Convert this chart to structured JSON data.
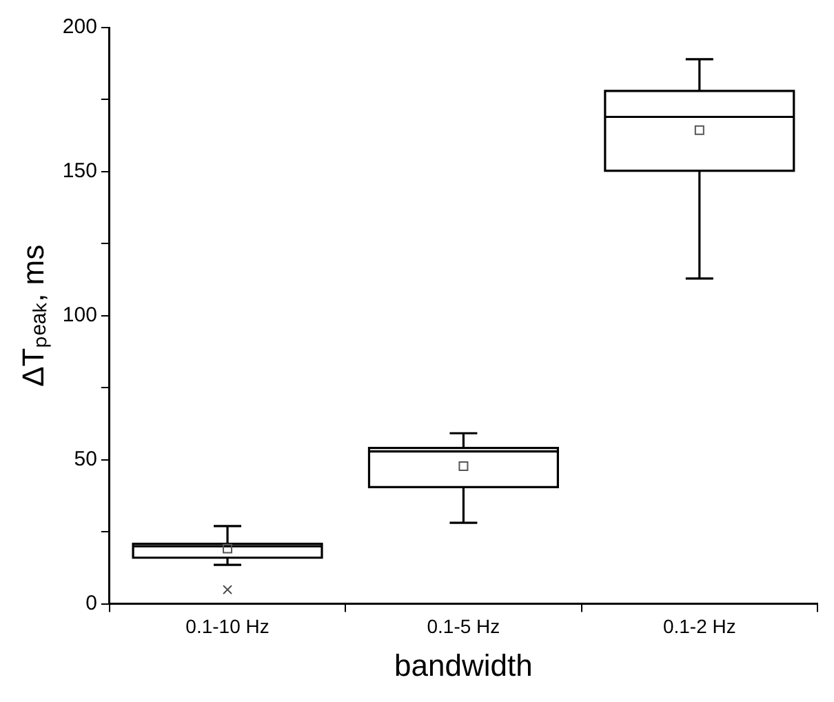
{
  "chart_data": {
    "type": "box",
    "xlabel": "bandwidth",
    "ylabel": "ΔTₚₑₐₖ, ms",
    "categories": [
      "0.1-10 Hz",
      "0.1-5 Hz",
      "0.1-2 Hz"
    ],
    "boxes": [
      {
        "low": 13.5,
        "q1": 16,
        "median": 20,
        "q3": 20.8,
        "high": 27,
        "mean": 19.2,
        "outliers": [
          4.9
        ]
      },
      {
        "low": 28.1,
        "q1": 40.5,
        "median": 52.9,
        "q3": 54.1,
        "high": 59.2,
        "mean": 47.8
      },
      {
        "low": 112.9,
        "q1": 150.3,
        "median": 169,
        "q3": 178,
        "high": 189,
        "mean": 164.4
      }
    ],
    "ylim": [
      0,
      200
    ],
    "yticks": [
      0,
      {
        "value": 25,
        "label": null
      },
      50,
      {
        "value": 75,
        "label": null
      },
      100,
      {
        "value": 125,
        "label": null
      },
      150,
      {
        "value": 175,
        "label": null
      },
      200
    ],
    "grid": false,
    "legend": false
  }
}
